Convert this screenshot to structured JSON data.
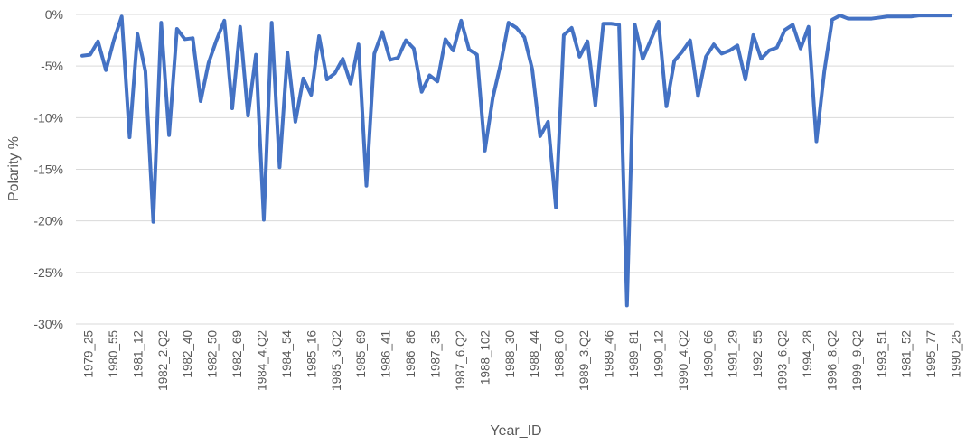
{
  "chart_data": {
    "type": "line",
    "xlabel": "Year_ID",
    "ylabel": "Polarity %",
    "ylim": [
      -30,
      0
    ],
    "y_ticks": [
      0,
      -5,
      -10,
      -15,
      -20,
      -25,
      -30
    ],
    "y_tick_labels": [
      "0%",
      "-5%",
      "-10%",
      "-15%",
      "-20%",
      "-25%",
      "-30%"
    ],
    "x_tick_labels": [
      "1979_25",
      "1980_55",
      "1981_12",
      "1982_2.Q2",
      "1982_40",
      "1982_50",
      "1982_69",
      "1984_4.Q2",
      "1984_54",
      "1985_16",
      "1985_3.Q2",
      "1985_69",
      "1986_41",
      "1986_86",
      "1987_35",
      "1987_6.Q2",
      "1988_102",
      "1988_30",
      "1988_44",
      "1988_60",
      "1989_3.Q2",
      "1989_46",
      "1989_81",
      "1990_12",
      "1990_4.Q2",
      "1990_66",
      "1991_29",
      "1992_55",
      "1993_6.Q2",
      "1994_28",
      "1996_8.Q2",
      "1999_9.Q2",
      "1993_51",
      "1981_52",
      "1995_77",
      "1990_25"
    ],
    "grid": true,
    "legend": "none",
    "colors": {
      "series": "#4472c4",
      "grid": "#d9d9d9",
      "text": "#595959"
    },
    "series": [
      {
        "values": [
          -4.0,
          -3.9,
          -2.6,
          -5.4,
          -2.5,
          -0.2,
          -11.9,
          -1.9,
          -5.5,
          -20.1,
          -0.8,
          -11.7,
          -1.4,
          -2.4,
          -2.3,
          -8.4,
          -4.7,
          -2.5,
          -0.6,
          -9.1,
          -1.2,
          -9.8,
          -3.9,
          -19.9,
          -0.8,
          -14.8,
          -3.7,
          -10.4,
          -6.2,
          -7.8,
          -2.1,
          -6.3,
          -5.7,
          -4.3,
          -6.7,
          -2.9,
          -16.6,
          -3.8,
          -1.7,
          -4.4,
          -4.2,
          -2.5,
          -3.3,
          -7.5,
          -5.9,
          -6.5,
          -2.4,
          -3.5,
          -0.6,
          -3.4,
          -3.9,
          -13.2,
          -8.1,
          -4.8,
          -0.8,
          -1.3,
          -2.2,
          -5.3,
          -11.8,
          -10.4,
          -18.7,
          -2.0,
          -1.3,
          -4.1,
          -2.6,
          -8.8,
          -0.9,
          -0.9,
          -1.0,
          -28.2,
          -1.0,
          -4.3,
          -2.5,
          -0.7,
          -8.9,
          -4.5,
          -3.6,
          -2.5,
          -7.9,
          -4.1,
          -2.9,
          -3.8,
          -3.5,
          -3.0,
          -6.3,
          -2.0,
          -4.3,
          -3.5,
          -3.2,
          -1.5,
          -1.0,
          -3.3,
          -1.2,
          -12.3,
          -5.5,
          -0.5,
          -0.1,
          -0.4,
          -0.4,
          -0.4,
          -0.4,
          -0.3,
          -0.2,
          -0.2,
          -0.2,
          -0.2,
          -0.1,
          -0.1,
          -0.1,
          -0.1,
          -0.1
        ]
      }
    ]
  }
}
